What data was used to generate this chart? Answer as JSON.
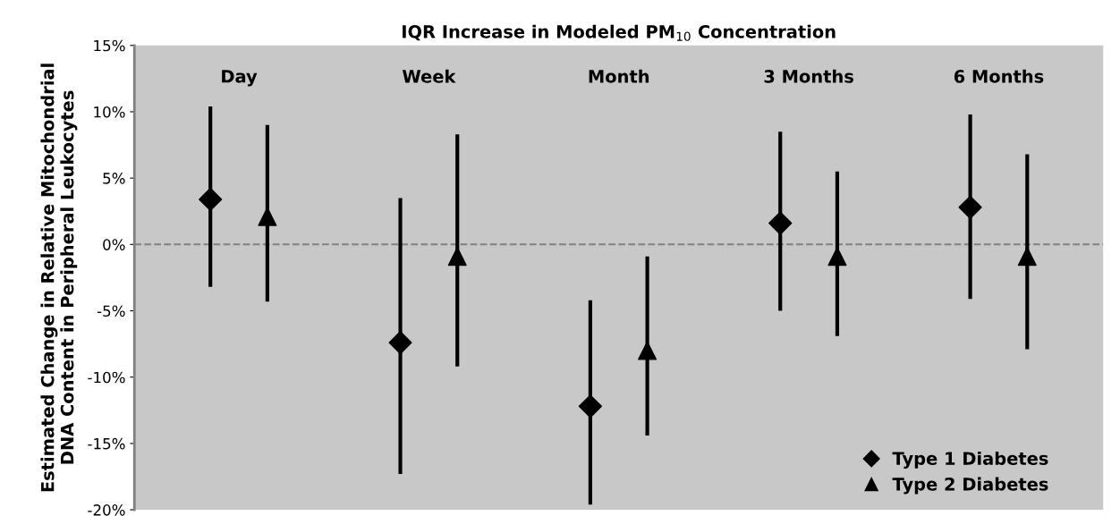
{
  "chart_data": {
    "type": "scatter",
    "title": "IQR Increase in Modeled PM$_{10}$ Concentration",
    "ylabel": "Estimated Change in Relative Mitochondrial\nDNA Content in Peripheral Leukocytes",
    "categories": [
      "Day",
      "Week",
      "Month",
      "3 Months",
      "6 Months"
    ],
    "series": [
      {
        "name": "Type 1 Diabetes",
        "color": "#000000",
        "marker": "diamond",
        "values": [
          3.4,
          -7.4,
          -12.2,
          1.6,
          2.8
        ],
        "errors": [
          [
            -3.2,
            10.4
          ],
          [
            -17.3,
            3.5
          ],
          [
            -19.6,
            -4.2
          ],
          [
            -5.0,
            8.5
          ],
          [
            -4.1,
            9.8
          ]
        ]
      },
      {
        "name": "Type 2 Diabetes",
        "color": "#000000",
        "marker": "triangle",
        "values": [
          2.1,
          -0.9,
          -8.0,
          -0.9,
          -0.9
        ],
        "errors": [
          [
            -4.3,
            9.0
          ],
          [
            -9.2,
            8.3
          ],
          [
            -14.4,
            -0.9
          ],
          [
            -6.9,
            5.5
          ],
          [
            -7.9,
            6.8
          ]
        ]
      }
    ],
    "ylim": [
      -20,
      15
    ],
    "yticks": [
      {
        "value": -20,
        "label": "-20%"
      },
      {
        "value": -15,
        "label": "-15%"
      },
      {
        "value": -10,
        "label": "-10%"
      },
      {
        "value": -5,
        "label": "-5%"
      },
      {
        "value": 0,
        "label": "0%"
      },
      {
        "value": 5,
        "label": "5%"
      },
      {
        "value": 10,
        "label": "10%"
      },
      {
        "value": 15,
        "label": "15%"
      }
    ],
    "ref_lines": [
      {
        "axis": "y",
        "value": 0,
        "color": "#808080",
        "line_style": "dashed"
      }
    ],
    "grid": false,
    "legend": "bottom right"
  }
}
